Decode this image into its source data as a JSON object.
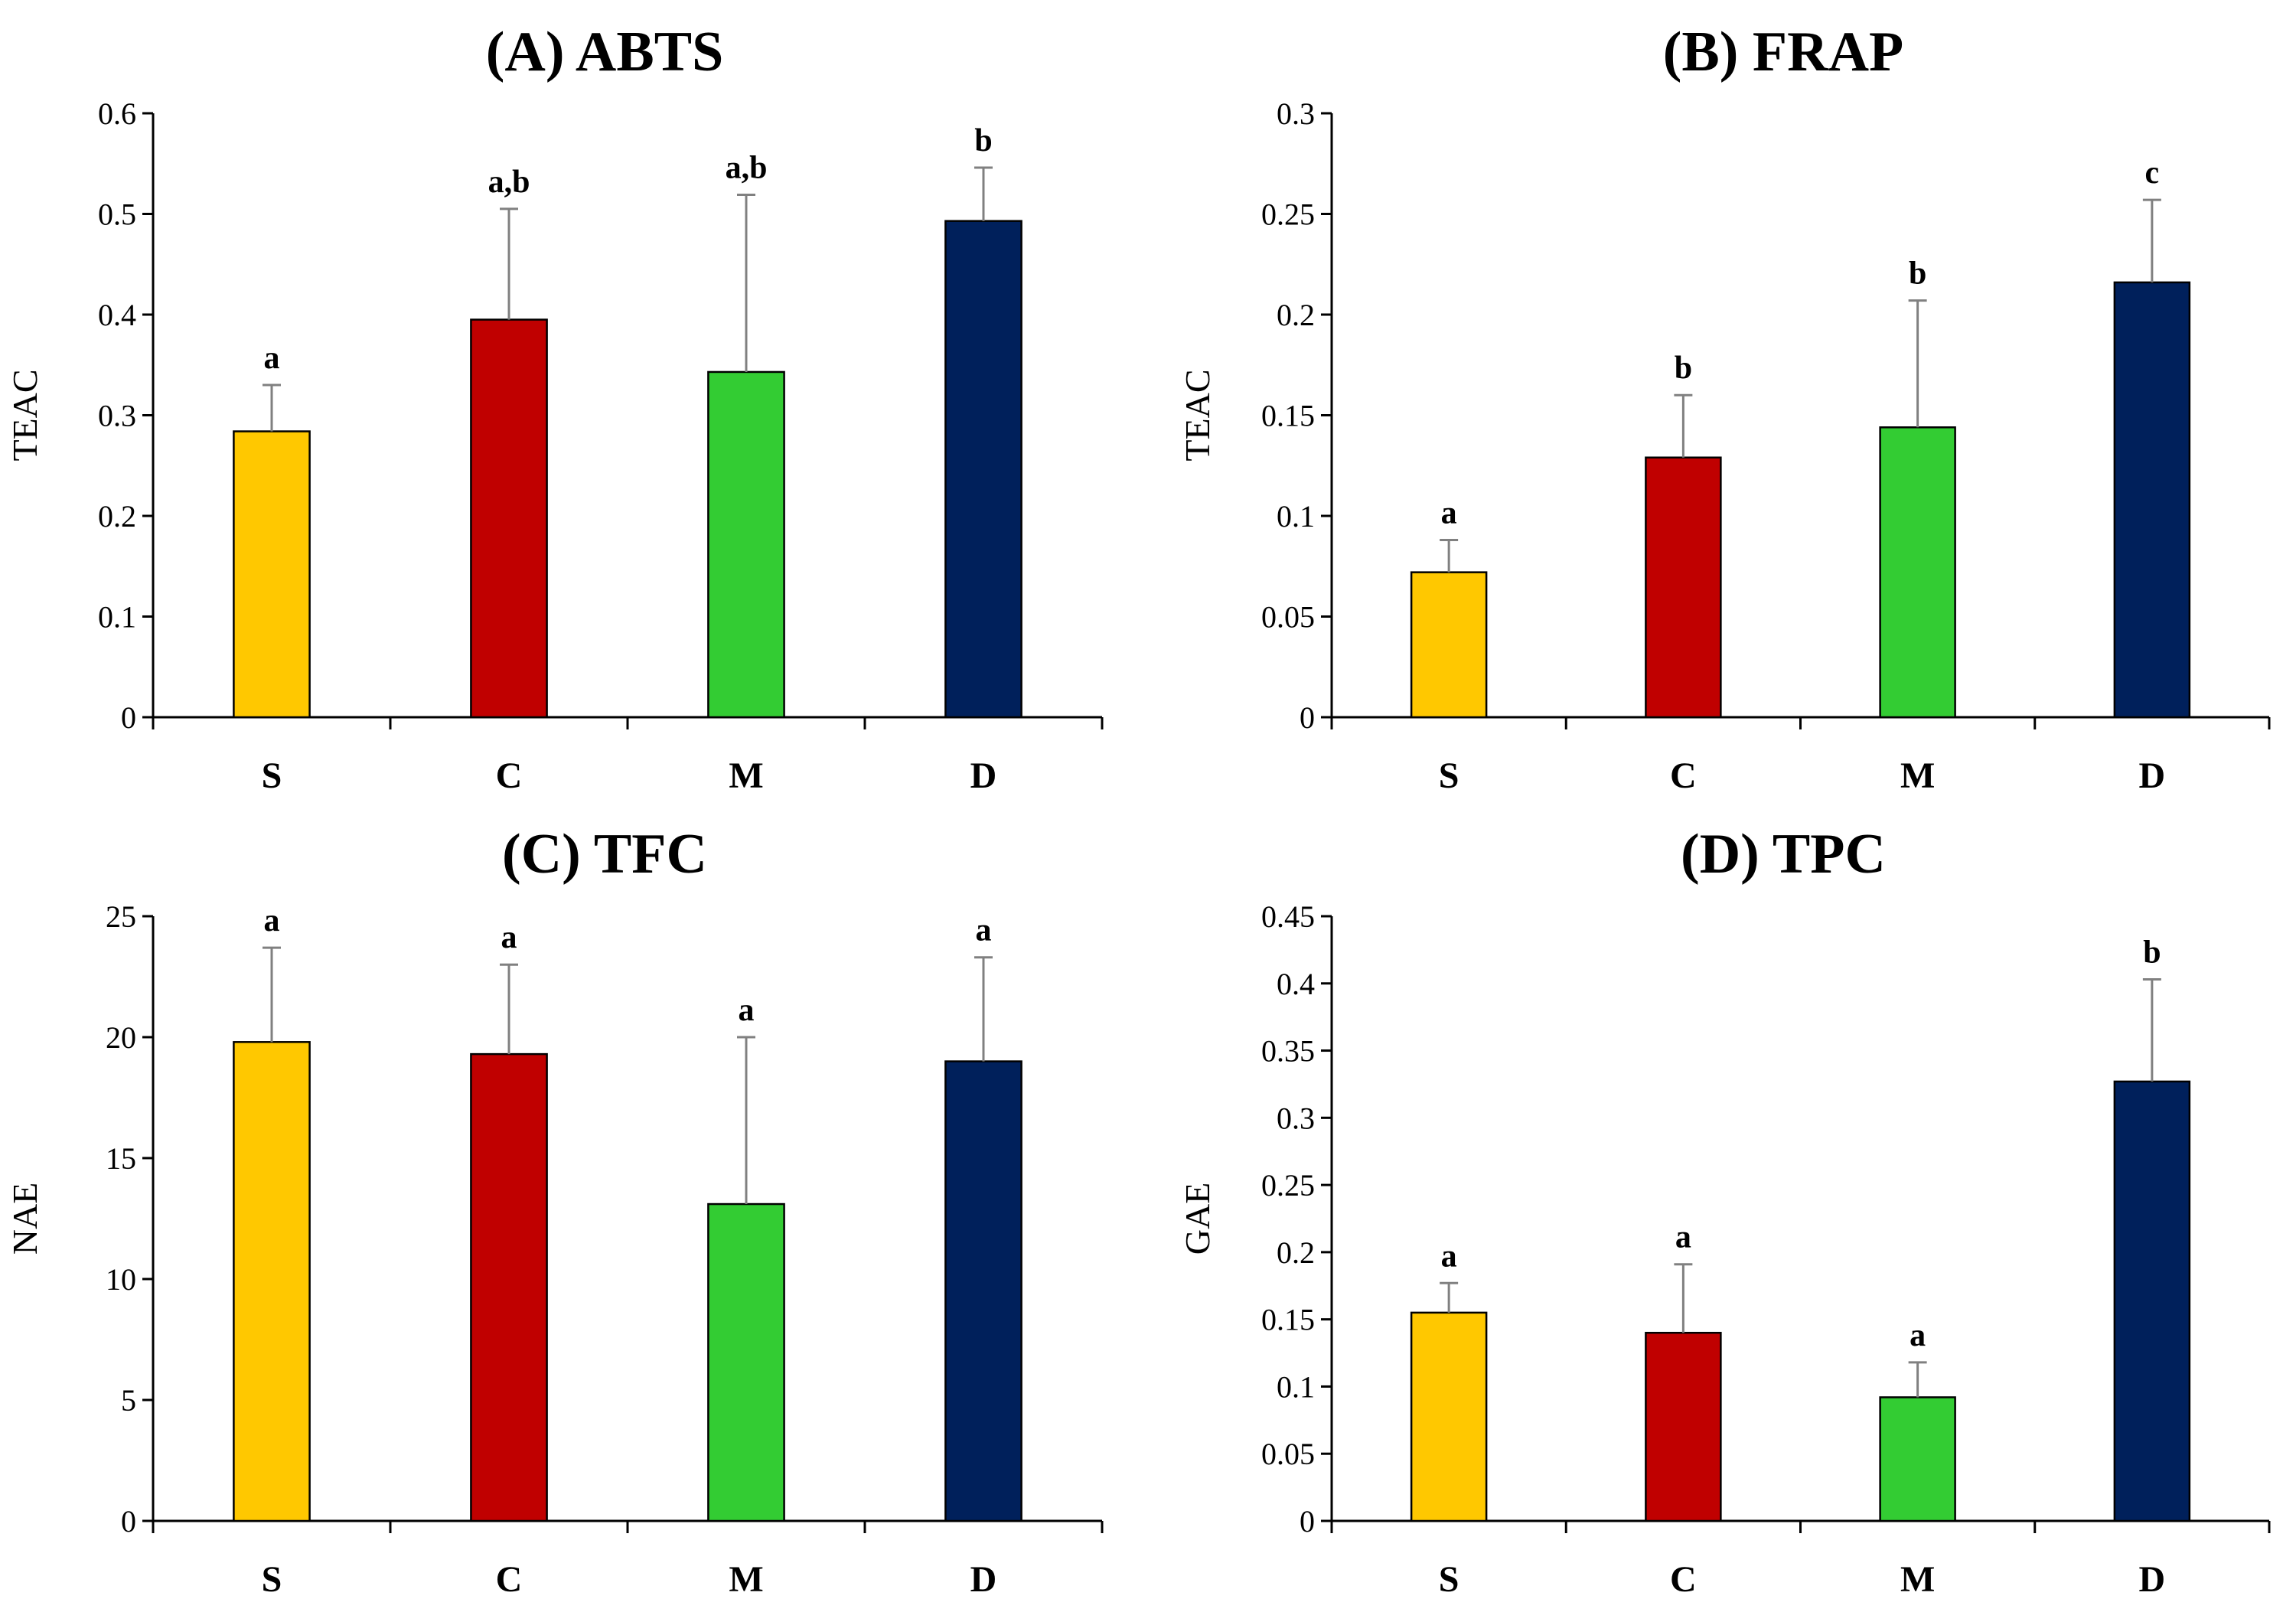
{
  "chart_data": [
    {
      "type": "bar",
      "title": "(A) ABTS",
      "ylabel": "TEAC",
      "categories": [
        "S",
        "C",
        "M",
        "D"
      ],
      "values": [
        0.284,
        0.395,
        0.343,
        0.493
      ],
      "errors": [
        0.046,
        0.11,
        0.176,
        0.053
      ],
      "significance": [
        "a",
        "a,b",
        "a,b",
        "b"
      ],
      "ylim": [
        0,
        0.6
      ],
      "yticks": [
        0,
        0.1,
        0.2,
        0.3,
        0.4,
        0.5,
        0.6
      ],
      "ytick_labels": [
        "0",
        "0.1",
        "0.2",
        "0.3",
        "0.4",
        "0.5",
        "0.6"
      ],
      "grid": false,
      "legend": "none"
    },
    {
      "type": "bar",
      "title": "(B) FRAP",
      "ylabel": "TEAC",
      "categories": [
        "S",
        "C",
        "M",
        "D"
      ],
      "values": [
        0.072,
        0.129,
        0.144,
        0.216
      ],
      "errors": [
        0.016,
        0.031,
        0.063,
        0.041
      ],
      "significance": [
        "a",
        "b",
        "b",
        "c"
      ],
      "ylim": [
        0,
        0.3
      ],
      "yticks": [
        0,
        0.05,
        0.1,
        0.15,
        0.2,
        0.25,
        0.3
      ],
      "ytick_labels": [
        "0",
        "0.05",
        "0.1",
        "0.15",
        "0.2",
        "0.25",
        "0.3"
      ],
      "grid": false,
      "legend": "none"
    },
    {
      "type": "bar",
      "title": "(C) TFC",
      "ylabel": "NAE",
      "categories": [
        "S",
        "C",
        "M",
        "D"
      ],
      "values": [
        19.8,
        19.3,
        13.1,
        19.0
      ],
      "errors": [
        3.9,
        3.7,
        6.9,
        4.3
      ],
      "significance": [
        "a",
        "a",
        "a",
        "a"
      ],
      "ylim": [
        0,
        25
      ],
      "yticks": [
        0,
        5,
        10,
        15,
        20,
        25
      ],
      "ytick_labels": [
        "0",
        "5",
        "10",
        "15",
        "20",
        "25"
      ],
      "grid": false,
      "legend": "none"
    },
    {
      "type": "bar",
      "title": "(D) TPC",
      "ylabel": "GAE",
      "categories": [
        "S",
        "C",
        "M",
        "D"
      ],
      "values": [
        0.155,
        0.14,
        0.092,
        0.327
      ],
      "errors": [
        0.022,
        0.051,
        0.026,
        0.076
      ],
      "significance": [
        "a",
        "a",
        "a",
        "b"
      ],
      "ylim": [
        0,
        0.45
      ],
      "yticks": [
        0,
        0.05,
        0.1,
        0.15,
        0.2,
        0.25,
        0.3,
        0.35,
        0.4,
        0.45
      ],
      "ytick_labels": [
        "0",
        "0.05",
        "0.1",
        "0.15",
        "0.2",
        "0.25",
        "0.3",
        "0.35",
        "0.4",
        "0.45"
      ],
      "grid": false,
      "legend": "none"
    }
  ],
  "colors": {
    "S": "#ffc800",
    "C": "#c00000",
    "M": "#33cc33",
    "D": "#00205b",
    "axis": "#000000",
    "error_bar": "#808080"
  }
}
